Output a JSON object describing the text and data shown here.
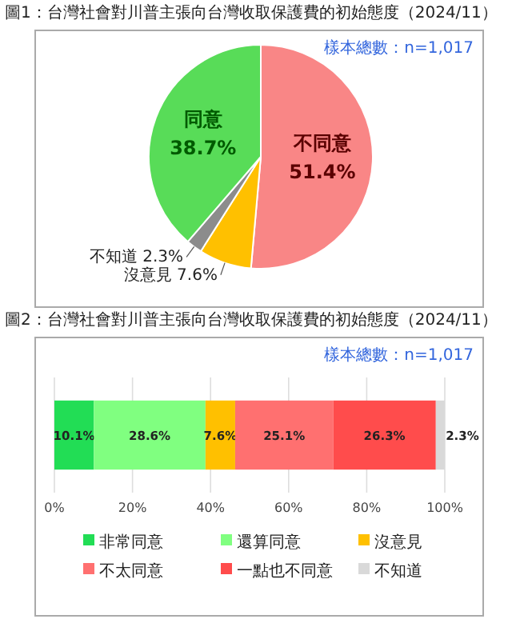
{
  "chart_data": [
    {
      "type": "pie",
      "title": "圖1：台灣社會對川普主張向台灣收取保護費的初始態度（2024/11）",
      "annotations": [
        "樣本總數：n=1,017"
      ],
      "categories": [
        "不同意",
        "沒意見",
        "不知道",
        "同意"
      ],
      "values": [
        51.4,
        7.6,
        2.3,
        38.7
      ],
      "colors": [
        "#f98686",
        "#ffc000",
        "#8c8c8c",
        "#58dc58"
      ],
      "value_labels": [
        "51.4%",
        "7.6%",
        "2.3%",
        "38.7%"
      ]
    },
    {
      "type": "bar",
      "orientation": "horizontal",
      "stacked": true,
      "title": "圖2：台灣社會對川普主張向台灣收取保護費的初始態度（2024/11）",
      "annotations": [
        "樣本總數：n=1,017"
      ],
      "categories": [
        null
      ],
      "series": [
        {
          "name": "非常同意",
          "color": "#22dd55",
          "values": [
            10.1
          ],
          "value_labels": [
            "10.1%"
          ]
        },
        {
          "name": "還算同意",
          "color": "#80ff80",
          "values": [
            28.6
          ],
          "value_labels": [
            "28.6%"
          ]
        },
        {
          "name": "沒意見",
          "color": "#ffc000",
          "values": [
            7.6
          ],
          "value_labels": [
            "7.6%"
          ]
        },
        {
          "name": "不太同意",
          "color": "#ff7070",
          "values": [
            25.1
          ],
          "value_labels": [
            "25.1%"
          ]
        },
        {
          "name": "一點也不同意",
          "color": "#ff4c4c",
          "values": [
            26.3
          ],
          "value_labels": [
            "26.3%"
          ]
        },
        {
          "name": "不知道",
          "color": "#d9d9d9",
          "values": [
            2.3
          ],
          "value_labels": [
            "2.3%"
          ]
        }
      ],
      "xlim": [
        0,
        100
      ],
      "xticks": [
        {
          "value": 0,
          "label": "0%"
        },
        {
          "value": 20,
          "label": "20%"
        },
        {
          "value": 40,
          "label": "40%"
        },
        {
          "value": 60,
          "label": "60%"
        },
        {
          "value": 80,
          "label": "80%"
        },
        {
          "value": 100,
          "label": "100%"
        }
      ],
      "grid": "x",
      "legend": "bottom"
    }
  ]
}
